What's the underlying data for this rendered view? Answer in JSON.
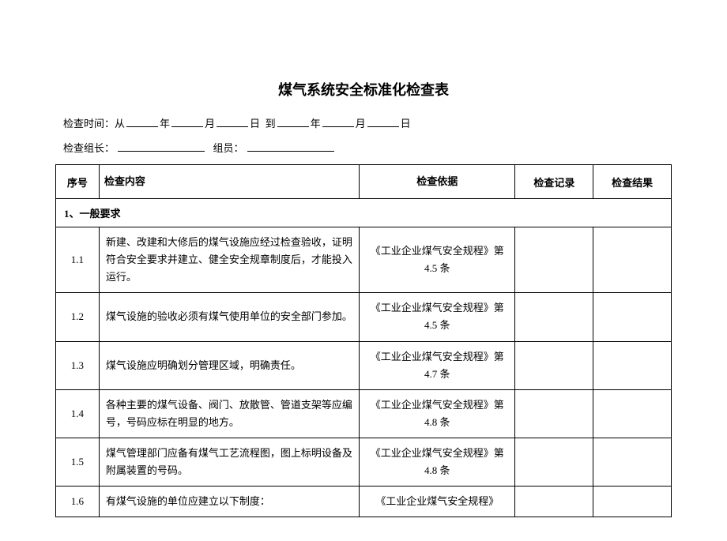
{
  "title": "煤气系统安全标准化检查表",
  "meta": {
    "time_prefix": "检查时间：从",
    "year": "年",
    "month": "月",
    "day": "日",
    "to": "到",
    "leader_label": "检查组长：",
    "member_label": "组员：",
    "date_sep": "  "
  },
  "table": {
    "headers": {
      "seq": "序号",
      "content": "检查内容",
      "basis": "检查依据",
      "record": "检查记录",
      "result": "检查结果"
    },
    "section1_title": "1、一般要求",
    "rows": [
      {
        "seq": "1.1",
        "content": "新建、改建和大修后的煤气设施应经过检查验收，证明符合安全要求并建立、健全安全规章制度后，才能投入运行。",
        "basis": "《工业企业煤气安全规程》第 4.5 条"
      },
      {
        "seq": "1.2",
        "content": "煤气设施的验收必须有煤气使用单位的安全部门参加。",
        "basis": "《工业企业煤气安全规程》第 4.5 条"
      },
      {
        "seq": "1.3",
        "content": "煤气设施应明确划分管理区域，明确责任。",
        "basis": "《工业企业煤气安全规程》第 4.7 条"
      },
      {
        "seq": "1.4",
        "content": "各种主要的煤气设备、阀门、放散管、管道支架等应编号，号码应标在明显的地方。",
        "basis": "《工业企业煤气安全规程》第 4.8 条"
      },
      {
        "seq": "1.5",
        "content": "煤气管理部门应备有煤气工艺流程图，图上标明设备及附属装置的号码。",
        "basis": "《工业企业煤气安全规程》第 4.8 条"
      },
      {
        "seq": "1.6",
        "content": "有煤气设施的单位应建立以下制度：",
        "basis": "《工业企业煤气安全规程》"
      }
    ]
  },
  "styling": {
    "background_color": "#ffffff",
    "text_color": "#000000",
    "border_color": "#000000",
    "title_fontsize": 18,
    "body_fontsize": 13,
    "col_widths": {
      "seq": 50,
      "content": 300,
      "basis": 180,
      "record": 90,
      "result": 90
    }
  }
}
